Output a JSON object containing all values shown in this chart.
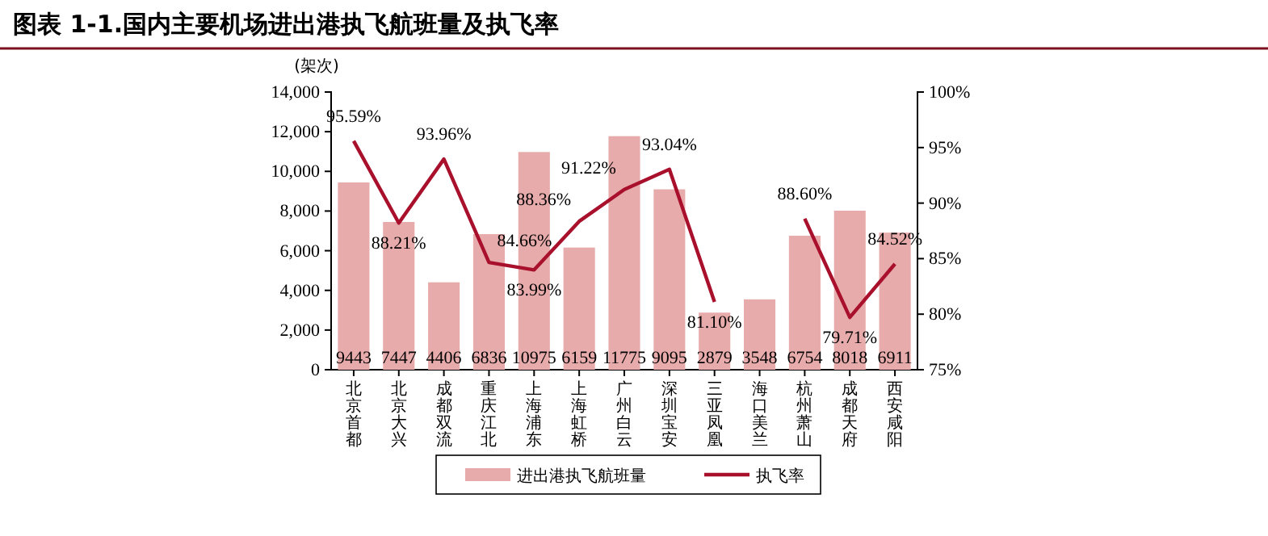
{
  "chart_data": {
    "type": "bar",
    "title": "图表 1-1.国内主要机场进出港执飞航班量及执飞率",
    "ylabel": "(架次)",
    "categories": [
      "北京首都",
      "北京大兴",
      "成都双流",
      "重庆江北",
      "上海浦东",
      "上海虹桥",
      "广州白云",
      "深圳宝安",
      "三亚凤凰",
      "海口美兰",
      "杭州萧山",
      "成都天府",
      "西安咸阳"
    ],
    "series": [
      {
        "name": "进出港执飞航班量",
        "color": "#e8abab",
        "values": [
          9443,
          7447,
          4406,
          6836,
          10975,
          6159,
          11775,
          9095,
          2879,
          3548,
          6754,
          8018,
          6911
        ],
        "value_labels": [
          "9443",
          "7447",
          "4406",
          "6836",
          "10975",
          "6159",
          "11775",
          "9095",
          "2879",
          "3548",
          "6754",
          "8018",
          "6911"
        ]
      },
      {
        "name": "执飞率",
        "type": "line",
        "axis": "y2",
        "color": "#a8102c",
        "values": [
          95.59,
          88.21,
          93.96,
          84.66,
          83.99,
          88.36,
          91.22,
          93.04,
          81.1,
          null,
          88.6,
          79.71,
          84.52
        ],
        "value_labels": [
          "95.59%",
          "88.21%",
          "93.96%",
          "84.66%",
          "83.99%",
          "88.36%",
          "91.22%",
          "93.04%",
          "81.10%",
          null,
          "88.60%",
          "79.71%",
          "84.52%"
        ]
      }
    ],
    "ylim": [
      0,
      14000
    ],
    "yticks": [
      0,
      {
        "value": 2000,
        "label": "2,000"
      },
      {
        "value": 4000,
        "label": "4,000"
      },
      {
        "value": 6000,
        "label": "6,000"
      },
      {
        "value": 8000,
        "label": "8,000"
      },
      {
        "value": 10000,
        "label": "10,000"
      },
      {
        "value": 12000,
        "label": "12,000"
      },
      {
        "value": 14000,
        "label": "14,000"
      }
    ],
    "y2lim": [
      75,
      100
    ],
    "y2ticks": [
      {
        "value": 75,
        "label": "75%"
      },
      {
        "value": 80,
        "label": "80%"
      },
      {
        "value": 85,
        "label": "85%"
      },
      {
        "value": 90,
        "label": "90%"
      },
      {
        "value": 95,
        "label": "95%"
      },
      {
        "value": 100,
        "label": "100%"
      }
    ],
    "grid": false,
    "legend": "bottom",
    "marker": "none",
    "line_style": "solid"
  }
}
